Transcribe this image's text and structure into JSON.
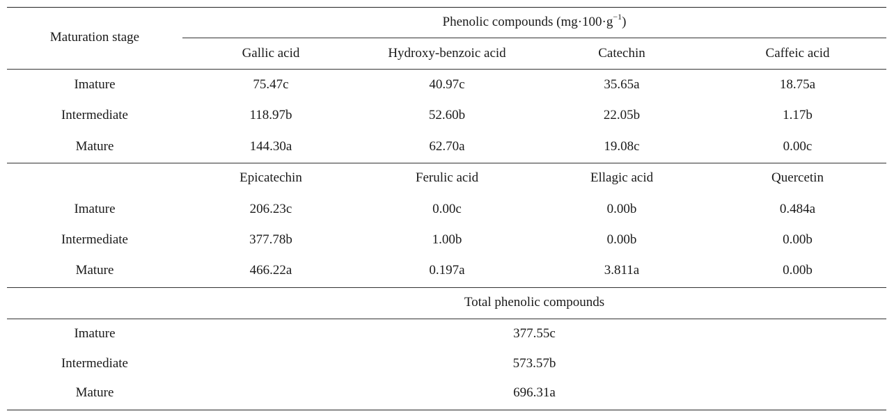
{
  "header": {
    "stage_label": "Maturation stage",
    "group_title": "Phenolic compounds (mg·100·g",
    "group_sup": "−1",
    "group_close": ")"
  },
  "block1": {
    "columns": [
      "Gallic acid",
      "Hydroxy-benzoic acid",
      "Catechin",
      "Caffeic acid"
    ],
    "rows": [
      {
        "stage": "Imature",
        "values": [
          "75.47c",
          "40.97c",
          "35.65a",
          "18.75a"
        ]
      },
      {
        "stage": "Intermediate",
        "values": [
          "118.97b",
          "52.60b",
          "22.05b",
          "1.17b"
        ]
      },
      {
        "stage": "Mature",
        "values": [
          "144.30a",
          "62.70a",
          "19.08c",
          "0.00c"
        ]
      }
    ]
  },
  "block2": {
    "columns": [
      "Epicatechin",
      "Ferulic acid",
      "Ellagic acid",
      "Quercetin"
    ],
    "rows": [
      {
        "stage": "Imature",
        "values": [
          "206.23c",
          "0.00c",
          "0.00b",
          "0.484a"
        ]
      },
      {
        "stage": "Intermediate",
        "values": [
          "377.78b",
          "1.00b",
          "0.00b",
          "0.00b"
        ]
      },
      {
        "stage": "Mature",
        "values": [
          "466.22a",
          "0.197a",
          "3.811a",
          "0.00b"
        ]
      }
    ]
  },
  "block3": {
    "title": "Total phenolic compounds",
    "rows": [
      {
        "stage": "Imature",
        "value": "377.55c"
      },
      {
        "stage": "Intermediate",
        "value": "573.57b"
      },
      {
        "stage": "Mature",
        "value": "696.31a"
      }
    ]
  }
}
